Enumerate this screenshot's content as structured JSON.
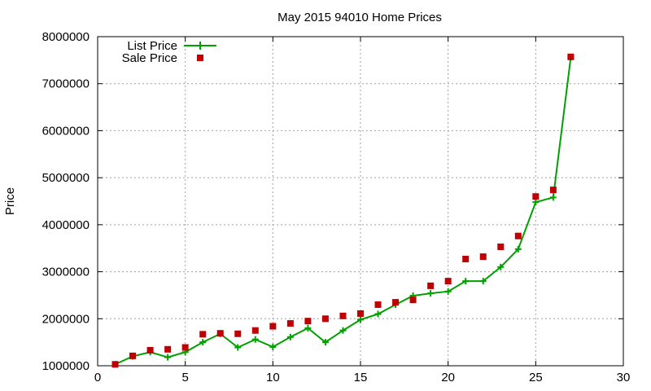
{
  "chart_data": {
    "type": "line",
    "title": "May 2015 94010 Home Prices",
    "xlabel": "",
    "ylabel": "Price",
    "xlim": [
      0,
      30
    ],
    "ylim": [
      1000000,
      8000000
    ],
    "x_ticks": [
      0,
      5,
      10,
      15,
      20,
      25,
      30
    ],
    "y_ticks": [
      1000000,
      2000000,
      3000000,
      4000000,
      5000000,
      6000000,
      7000000,
      8000000
    ],
    "x_tick_labels": [
      "0",
      "5",
      "10",
      "15",
      "20",
      "25",
      "30"
    ],
    "y_tick_labels": [
      "1000000",
      "2000000",
      "3000000",
      "4000000",
      "5000000",
      "6000000",
      "7000000",
      "8000000"
    ],
    "grid": true,
    "legend_position": "top-left",
    "series": [
      {
        "name": "List Price",
        "style": "line+plus",
        "color": "#00a000",
        "x": [
          1,
          2,
          3,
          4,
          5,
          6,
          7,
          8,
          9,
          10,
          11,
          12,
          13,
          14,
          15,
          16,
          17,
          18,
          19,
          20,
          21,
          22,
          23,
          24,
          25,
          26,
          27
        ],
        "values": [
          1030000,
          1200000,
          1290000,
          1180000,
          1290000,
          1500000,
          1680000,
          1390000,
          1560000,
          1400000,
          1610000,
          1800000,
          1500000,
          1750000,
          1980000,
          2100000,
          2300000,
          2490000,
          2540000,
          2580000,
          2800000,
          2800000,
          3100000,
          3480000,
          4480000,
          4580000,
          7560000
        ]
      },
      {
        "name": "Sale Price",
        "style": "square",
        "color": "#c00000",
        "x": [
          1,
          2,
          3,
          4,
          5,
          6,
          7,
          8,
          9,
          10,
          11,
          12,
          13,
          14,
          15,
          16,
          17,
          18,
          19,
          20,
          21,
          22,
          23,
          24,
          25,
          26,
          27
        ],
        "values": [
          1030000,
          1210000,
          1330000,
          1350000,
          1390000,
          1670000,
          1690000,
          1680000,
          1750000,
          1840000,
          1900000,
          1950000,
          2000000,
          2060000,
          2110000,
          2300000,
          2350000,
          2400000,
          2700000,
          2800000,
          3270000,
          3320000,
          3530000,
          3760000,
          4600000,
          4740000,
          7570000
        ]
      }
    ]
  }
}
